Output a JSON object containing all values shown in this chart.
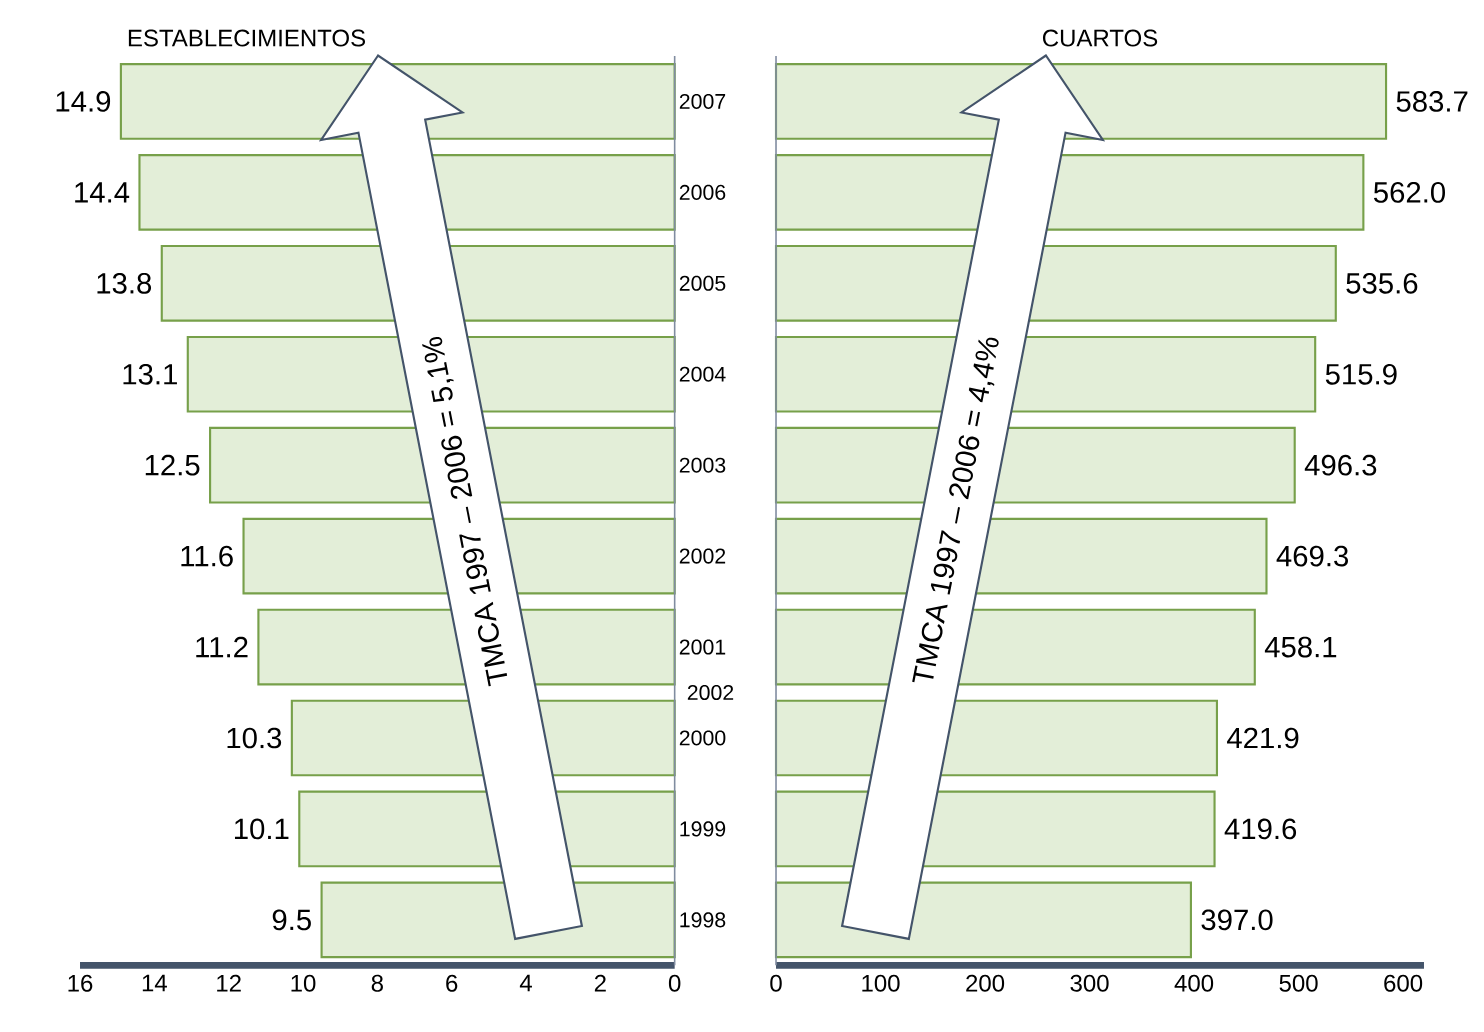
{
  "chart_data": [
    {
      "type": "bar",
      "orientation": "horizontal",
      "title": "ESTABLECIMIENTOS",
      "categories": [
        "2007",
        "2006",
        "2005",
        "2004",
        "2003",
        "2002",
        "2001",
        "2000",
        "1999",
        "1998"
      ],
      "values": [
        14.9,
        14.4,
        13.8,
        13.1,
        12.5,
        11.6,
        11.2,
        10.3,
        10.1,
        9.5
      ],
      "color": "#e3eed8",
      "data_labels": true,
      "xlim": [
        16,
        0
      ],
      "xticks": [
        16,
        14,
        12,
        10,
        8,
        6,
        4,
        2,
        0
      ],
      "annotations": [
        "TMCA 1997 – 2006 = 5,1%",
        "2002"
      ]
    },
    {
      "type": "bar",
      "orientation": "horizontal",
      "title": "CUARTOS",
      "categories": [
        "2007",
        "2006",
        "2005",
        "2004",
        "2003",
        "2002",
        "2001",
        "2000",
        "1999",
        "1998"
      ],
      "values": [
        583.7,
        562.0,
        535.6,
        515.9,
        496.3,
        469.3,
        458.1,
        421.9,
        419.6,
        397.0
      ],
      "color": "#e3eed8",
      "value_labels": [
        "583.7",
        "562.0",
        "535.6",
        "515.9",
        "496.3",
        "469.3",
        "458.1",
        "421.9",
        "419.6",
        "397.0"
      ],
      "xlim": [
        0,
        620
      ],
      "xticks": [
        0,
        100,
        200,
        300,
        400,
        500,
        600
      ],
      "tick_labels": "x",
      "annotations": [
        "TMCA 1997 – 2006 = 4,4%"
      ]
    }
  ]
}
